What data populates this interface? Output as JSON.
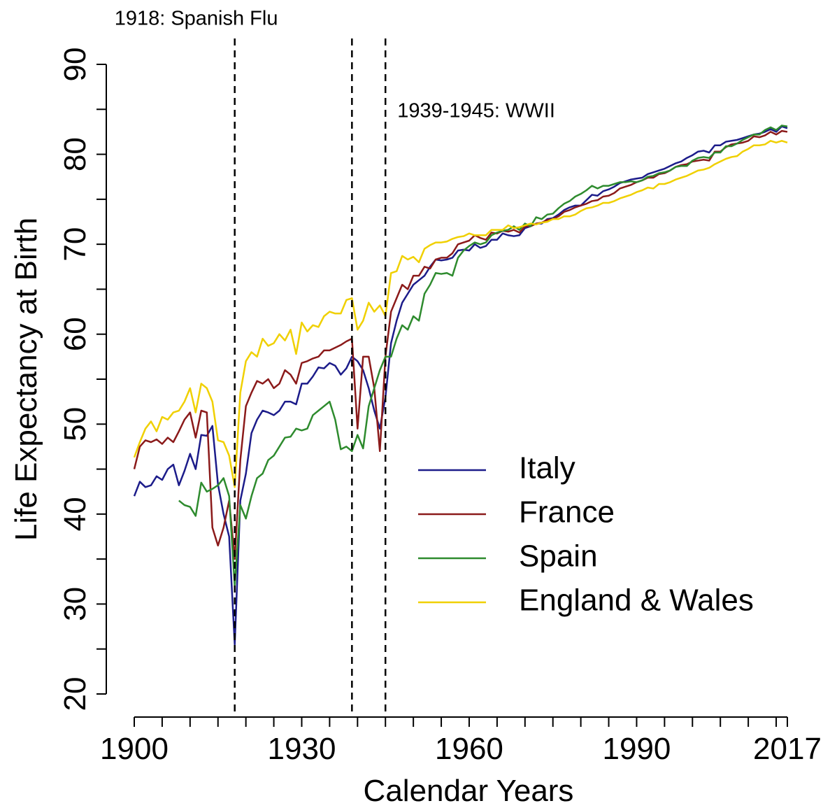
{
  "chart_data": {
    "type": "line",
    "xlabel": "Calendar Years",
    "ylabel": "Life Expectancy at Birth",
    "xlim": [
      1900,
      2017
    ],
    "ylim": [
      20,
      90
    ],
    "xticks": [
      1900,
      1930,
      1960,
      1990,
      2017
    ],
    "xminorticks": [
      1905,
      1910,
      1915,
      1920,
      1925,
      1935,
      1940,
      1945,
      1950,
      1955,
      1965,
      1970,
      1975,
      1980,
      1985,
      1995,
      2000,
      2005,
      2010,
      2015
    ],
    "yticks": [
      20,
      30,
      40,
      50,
      60,
      70,
      80,
      90
    ],
    "yminorticks": [
      25,
      35,
      45,
      55,
      65,
      75,
      85
    ],
    "vlines": [
      1918,
      1939,
      1945
    ],
    "annotations": [
      {
        "text": "1918: Spanish Flu",
        "x": 1918
      },
      {
        "text": "1939-1945: WWII",
        "x": 1945
      }
    ],
    "legend": "center-right",
    "x": [
      1900,
      1901,
      1902,
      1903,
      1904,
      1905,
      1906,
      1907,
      1908,
      1909,
      1910,
      1911,
      1912,
      1913,
      1914,
      1915,
      1916,
      1917,
      1918,
      1919,
      1920,
      1921,
      1922,
      1923,
      1924,
      1925,
      1926,
      1927,
      1928,
      1929,
      1930,
      1931,
      1932,
      1933,
      1934,
      1935,
      1936,
      1937,
      1938,
      1939,
      1940,
      1941,
      1942,
      1943,
      1944,
      1945,
      1946,
      1947,
      1948,
      1949,
      1950,
      1951,
      1952,
      1953,
      1954,
      1955,
      1956,
      1957,
      1958,
      1959,
      1960,
      1961,
      1962,
      1963,
      1964,
      1965,
      1966,
      1967,
      1968,
      1969,
      1970,
      1971,
      1972,
      1973,
      1974,
      1975,
      1976,
      1977,
      1978,
      1979,
      1980,
      1981,
      1982,
      1983,
      1984,
      1985,
      1986,
      1987,
      1988,
      1989,
      1990,
      1991,
      1992,
      1993,
      1994,
      1995,
      1996,
      1997,
      1998,
      1999,
      2000,
      2001,
      2002,
      2003,
      2004,
      2005,
      2006,
      2007,
      2008,
      2009,
      2010,
      2011,
      2012,
      2013,
      2014,
      2015,
      2016,
      2017
    ],
    "series": [
      {
        "name": "Italy",
        "color": "#1c1c8a",
        "values": [
          42,
          43.6,
          43,
          43.2,
          44.2,
          43.8,
          45,
          45.5,
          43.2,
          44.8,
          46.7,
          45,
          48.8,
          48.7,
          49.8,
          43.3,
          40,
          37.5,
          25.5,
          41.5,
          44.5,
          49,
          50.5,
          51.5,
          51.3,
          51,
          51.5,
          52.5,
          52.5,
          52.2,
          54.5,
          54.5,
          55.3,
          56.3,
          56.2,
          56.8,
          56.5,
          55.5,
          56.2,
          57.5,
          57,
          56,
          54,
          51.5,
          49.5,
          53,
          59,
          61.5,
          63.5,
          64.5,
          65.5,
          66,
          66.5,
          67.5,
          68.3,
          68.2,
          68.3,
          68.5,
          69.3,
          69.4,
          69.3,
          70,
          69.6,
          69.8,
          70.5,
          70.5,
          71.2,
          71,
          70.9,
          71,
          71.8,
          72,
          72.3,
          72.3,
          72.8,
          72.9,
          73.3,
          73.8,
          74.1,
          74.3,
          74.3,
          74.9,
          75.5,
          75.4,
          75.9,
          76.1,
          76.4,
          76.8,
          77,
          77.2,
          77.3,
          77.4,
          77.8,
          78,
          78.2,
          78.4,
          78.7,
          79,
          79.2,
          79.6,
          79.9,
          80.3,
          80.4,
          80.2,
          81,
          81,
          81.4,
          81.5,
          81.6,
          81.8,
          82,
          82.2,
          82.3,
          82.5,
          82.8,
          82.5,
          83.1,
          82.9
        ]
      },
      {
        "name": "France",
        "color": "#8b1a1a",
        "values": [
          45,
          47.5,
          48.2,
          48,
          48.3,
          47.8,
          48.5,
          48,
          49.2,
          50.5,
          51.3,
          48.5,
          51.5,
          51.3,
          38.5,
          36.5,
          38.5,
          41.5,
          35,
          46,
          52,
          53.5,
          54.8,
          54.5,
          55,
          54,
          54.5,
          56,
          55.5,
          54.5,
          56.8,
          57,
          57.3,
          57.5,
          58.2,
          58.2,
          58.5,
          58.8,
          59.2,
          59.5,
          49.5,
          57.5,
          57.5,
          54,
          47,
          57.5,
          62.5,
          64,
          65.5,
          65,
          66.5,
          66.5,
          67.5,
          67.3,
          68.3,
          68.5,
          68.5,
          69,
          70,
          70.2,
          70.4,
          71,
          70.7,
          70.5,
          71.3,
          71.2,
          71.5,
          71.4,
          71.6,
          71.3,
          72,
          72,
          72.3,
          72.4,
          72.7,
          72.8,
          73.1,
          73.6,
          73.8,
          74.1,
          74.3,
          74.5,
          74.8,
          74.9,
          75.3,
          75.4,
          75.7,
          76.2,
          76.4,
          76.6,
          76.9,
          77.1,
          77.4,
          77.4,
          77.8,
          77.9,
          78.2,
          78.6,
          78.8,
          78.9,
          79.2,
          79.3,
          79.4,
          79.3,
          80.3,
          80.3,
          80.8,
          81.1,
          81.2,
          81.3,
          81.5,
          82,
          81.9,
          82.1,
          82.5,
          82.2,
          82.6,
          82.5
        ]
      },
      {
        "name": "Spain",
        "color": "#2e8b2e",
        "values": [
          null,
          null,
          null,
          null,
          null,
          null,
          null,
          null,
          41.5,
          41,
          40.8,
          39.8,
          43.5,
          42.5,
          42.8,
          43.2,
          44,
          42,
          32,
          41,
          39.5,
          42,
          44,
          44.5,
          46,
          46.5,
          47.5,
          48.5,
          48.6,
          49.5,
          49.3,
          49.5,
          51,
          51.5,
          52,
          52.5,
          50.5,
          47.2,
          47.5,
          47,
          48.8,
          47.3,
          52,
          54,
          56,
          57.5,
          57.5,
          59.5,
          61,
          60.5,
          62,
          61.5,
          64.5,
          65.5,
          66.8,
          66.7,
          66.8,
          66.5,
          68.5,
          69.3,
          69.8,
          70.2,
          70,
          70.2,
          71,
          71.3,
          71.5,
          71.6,
          72,
          71.6,
          72.3,
          72,
          73,
          72.8,
          73.3,
          73.4,
          74,
          74.5,
          74.8,
          75.3,
          75.6,
          76,
          76.5,
          76.2,
          76.5,
          76.5,
          76.7,
          76.9,
          76.9,
          77,
          76.9,
          77.1,
          77.5,
          77.6,
          77.9,
          78,
          78.2,
          78.6,
          78.7,
          78.7,
          79.3,
          79.6,
          79.7,
          79.6,
          80.2,
          80.2,
          80.9,
          80.9,
          81.2,
          81.6,
          81.9,
          82.2,
          82.2,
          82.7,
          83,
          82.7,
          83.2,
          83.1
        ]
      },
      {
        "name": "England & Wales",
        "color": "#f0d000",
        "values": [
          46.3,
          48,
          49.5,
          50.3,
          49.2,
          50.8,
          50.5,
          51.3,
          51.5,
          52.5,
          54,
          51.3,
          54.5,
          54,
          52.5,
          48.2,
          48,
          46.5,
          43,
          53.5,
          57,
          58,
          57.5,
          59.5,
          58.7,
          59,
          60,
          59.3,
          60.5,
          57.8,
          61.3,
          60.3,
          61,
          60.8,
          62,
          62.5,
          62.3,
          62.3,
          63.8,
          64,
          60.5,
          61.5,
          63.5,
          62.5,
          63.2,
          62,
          66.8,
          67,
          68.7,
          68.3,
          68.6,
          68,
          69.5,
          69.9,
          70.2,
          70.2,
          70.3,
          70.6,
          70.8,
          70.9,
          71.2,
          71,
          71,
          71,
          71.6,
          71.6,
          71.6,
          72.1,
          71.8,
          71.9,
          72.1,
          72.3,
          72.2,
          72.4,
          72.5,
          72.8,
          72.8,
          73.1,
          73.1,
          73.3,
          73.7,
          74,
          74.1,
          74.3,
          74.6,
          74.6,
          74.8,
          75.1,
          75.3,
          75.5,
          75.8,
          76,
          76.3,
          76.2,
          76.7,
          76.7,
          76.9,
          77.2,
          77.4,
          77.6,
          77.9,
          78.2,
          78.3,
          78.5,
          78.9,
          79.2,
          79.5,
          79.7,
          79.8,
          80.3,
          80.6,
          81,
          81,
          81.1,
          81.5,
          81.3,
          81.5,
          81.3
        ]
      }
    ]
  }
}
